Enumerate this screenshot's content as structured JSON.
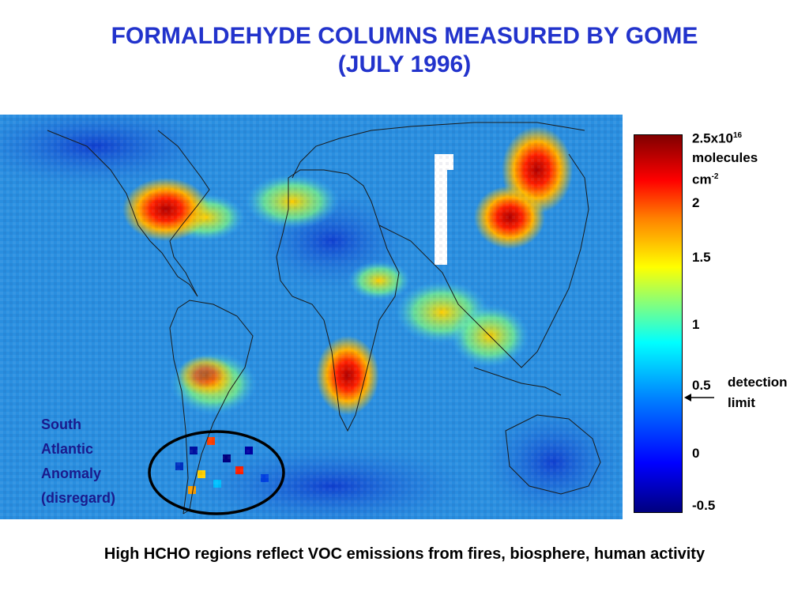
{
  "title": {
    "line1": "FORMALDEHYDE COLUMNS MEASURED BY GOME",
    "line2": "(JULY 1996)"
  },
  "colorbar": {
    "max_label_prefix": "2.5x10",
    "max_label_exp": "16",
    "unit_line1": "molecules",
    "unit_cm": "cm",
    "unit_exp": "-2",
    "ticks": [
      "2",
      "1.5",
      "1",
      "0.5",
      "0",
      "-0.5"
    ],
    "colors": [
      "#00007f",
      "#0000ff",
      "#0080ff",
      "#00ffff",
      "#ffff00",
      "#ff0000",
      "#800000"
    ]
  },
  "detection_limit": {
    "line1": "detection",
    "line2": "limit",
    "value": "0.5"
  },
  "anomaly": {
    "line1": "South",
    "line2": "Atlantic",
    "line3": "Anomaly",
    "line4": "(disregard)"
  },
  "caption": "High HCHO regions reflect VOC emissions from fires, biosphere, human activity"
}
